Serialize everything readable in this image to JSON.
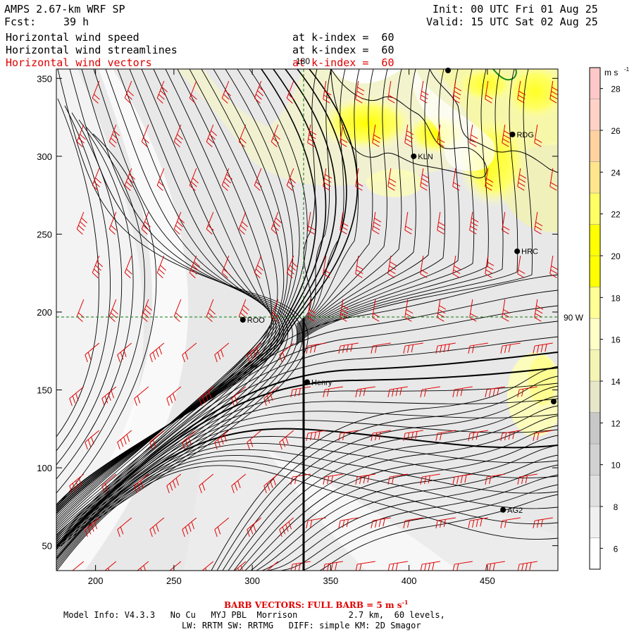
{
  "header": {
    "model_title": "AMPS 2.67-km WRF SP",
    "init_label": "Init: 00 UTC Fri 01 Aug 25",
    "fcst_label": "Fcst:",
    "fcst_value": "39 h",
    "valid_label": "Valid: 15 UTC Sat 02 Aug 25",
    "fields": [
      {
        "name": "Horizontal wind speed",
        "level": "at k-index =  60",
        "color": "#000000"
      },
      {
        "name": "Horizontal wind streamlines",
        "level": "at k-index =  60",
        "color": "#000000"
      },
      {
        "name": "Horizontal wind vectors",
        "level": "at k-index =  60",
        "color": "#e00000"
      }
    ]
  },
  "map": {
    "x_ticks": [
      200,
      250,
      300,
      350,
      400,
      450
    ],
    "y_ticks": [
      50,
      100,
      150,
      200,
      250,
      300,
      350
    ],
    "x_range": [
      175,
      495
    ],
    "y_range": [
      34,
      356
    ],
    "grid_label_top": "180",
    "grid_label_right": "90 W",
    "stations": [
      {
        "name": "RDG",
        "x": 466,
        "y": 314
      },
      {
        "name": "KLN",
        "x": 403,
        "y": 300
      },
      {
        "name": "HRC",
        "x": 469,
        "y": 239
      },
      {
        "name": "ROO",
        "x": 294,
        "y": 195
      },
      {
        "name": "Henry",
        "x": 335,
        "y": 155
      },
      {
        "name": "AG2",
        "x": 460,
        "y": 73
      }
    ]
  },
  "colorbar": {
    "units": "m s",
    "units_exp": "-1",
    "labels": [
      6,
      8,
      10,
      12,
      14,
      16,
      18,
      20,
      22,
      24,
      26,
      28
    ],
    "colors": [
      "#ffffff",
      "#f0f0f0",
      "#e0e0e0",
      "#d2d2d2",
      "#c8c8c8",
      "#e6e6c8",
      "#f4f4b4",
      "#ffffc8",
      "#ffff96",
      "#ffff00",
      "#ffff00",
      "#ffff64",
      "#ffe68c",
      "#ffd2a0",
      "#ffd2c8",
      "#ffc8c8"
    ]
  },
  "footer": {
    "barb_label": "BARB VECTORS:  FULL BARB = 5 m s",
    "barb_exp": "-1",
    "model_info": "Model Info: V4.3.3   No Cu   MYJ PBL  Morrison          2.7 km,  60 levels,",
    "physics_info": "LW: RRTM SW: RRTMG   DIFF: simple KM: 2D Smagor"
  }
}
